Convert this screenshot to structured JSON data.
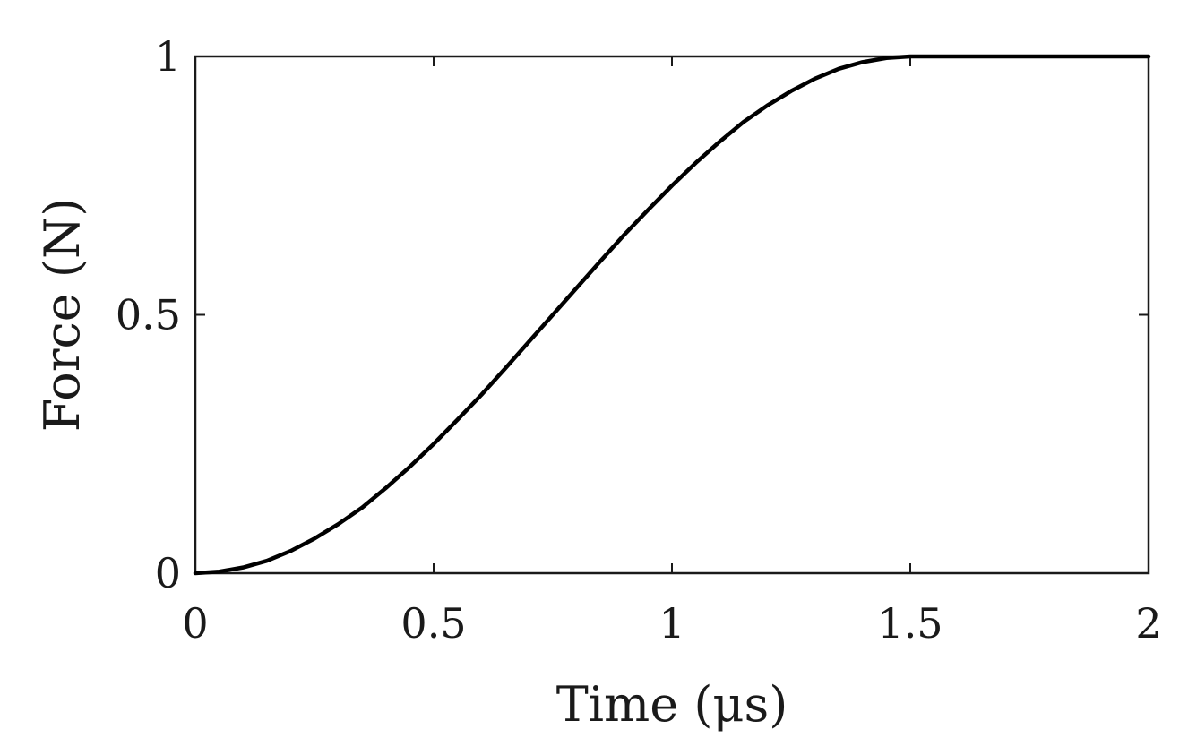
{
  "chart_data": {
    "type": "line",
    "xlabel": "Time (μs)",
    "ylabel": "Force (N)",
    "xlim": [
      0,
      2
    ],
    "ylim": [
      0,
      1
    ],
    "x_ticks": [
      {
        "value": 0,
        "label": "0"
      },
      {
        "value": 0.5,
        "label": "0.5"
      },
      {
        "value": 1,
        "label": "1"
      },
      {
        "value": 1.5,
        "label": "1.5"
      },
      {
        "value": 2,
        "label": "2"
      }
    ],
    "y_ticks": [
      {
        "value": 0,
        "label": "0"
      },
      {
        "value": 0.5,
        "label": "0.5"
      },
      {
        "value": 1,
        "label": "1"
      }
    ],
    "grid": false,
    "legend": "none",
    "series": [
      {
        "color": "#000000",
        "x": [
          0,
          0.05,
          0.1,
          0.15,
          0.2,
          0.25,
          0.3,
          0.35,
          0.4,
          0.45,
          0.5,
          0.55,
          0.6,
          0.65,
          0.7,
          0.75,
          0.8,
          0.85,
          0.9,
          0.95,
          1.0,
          1.05,
          1.1,
          1.15,
          1.2,
          1.25,
          1.3,
          1.35,
          1.4,
          1.45,
          1.5,
          1.6,
          1.7,
          1.8,
          1.9,
          2.0
        ],
        "y": [
          0,
          0.003,
          0.011,
          0.024,
          0.043,
          0.067,
          0.095,
          0.127,
          0.165,
          0.206,
          0.25,
          0.297,
          0.345,
          0.396,
          0.448,
          0.5,
          0.552,
          0.604,
          0.655,
          0.703,
          0.75,
          0.794,
          0.835,
          0.873,
          0.905,
          0.933,
          0.957,
          0.976,
          0.989,
          0.997,
          1.0,
          1.0,
          1.0,
          1.0,
          1.0,
          1.0
        ]
      }
    ]
  }
}
